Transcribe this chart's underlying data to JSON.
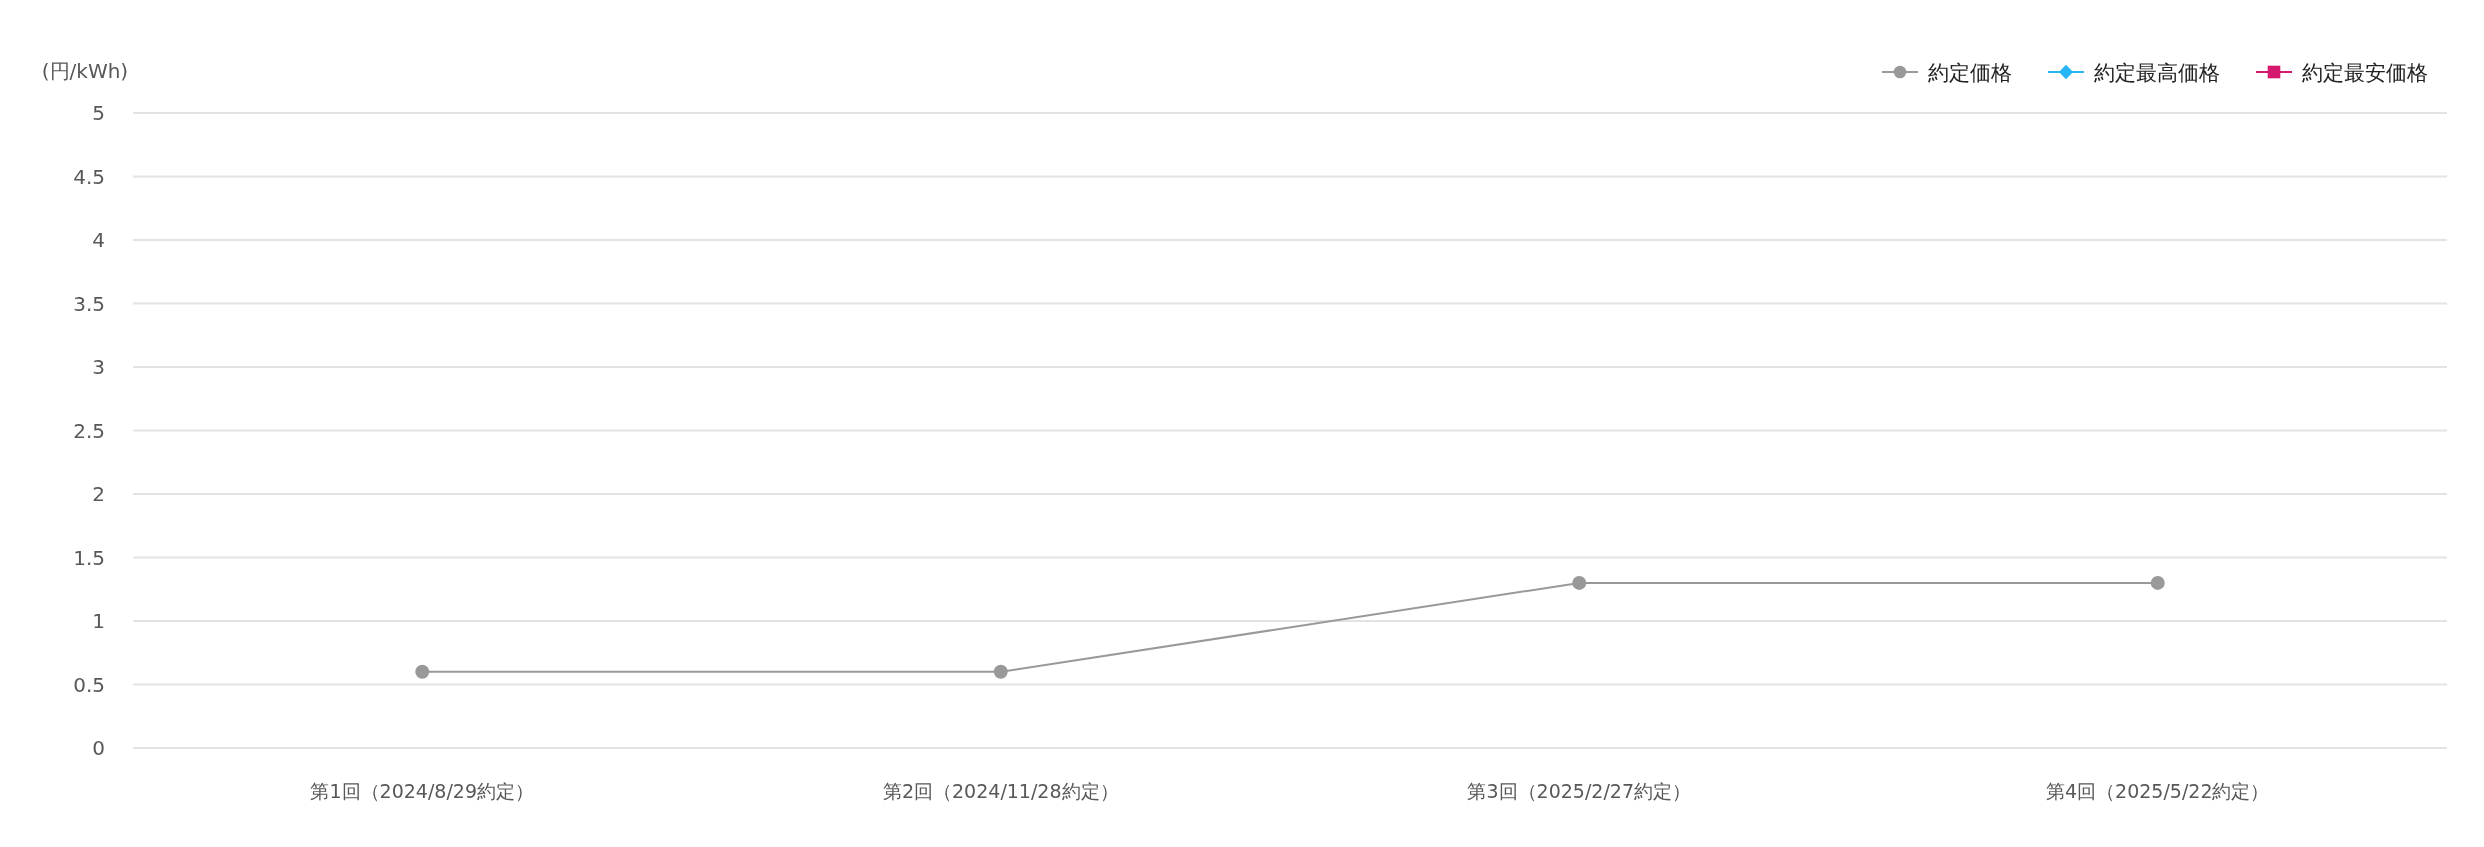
{
  "chart_data": {
    "type": "line",
    "ylabel": "(円/kWh)",
    "categories": [
      "第1回（2024/8/29約定）",
      "第2回（2024/11/28約定）",
      "第3回（2025/2/27約定）",
      "第4回（2025/5/22約定）"
    ],
    "series": [
      {
        "name": "約定価格",
        "color": "#999999",
        "marker": "circle",
        "values": [
          0.6,
          0.6,
          1.3,
          1.3
        ]
      },
      {
        "name": "約定最高価格",
        "color": "#29b6f6",
        "marker": "diamond",
        "values": [
          null,
          null,
          null,
          null
        ]
      },
      {
        "name": "約定最安価格",
        "color": "#d6196e",
        "marker": "square",
        "values": [
          null,
          null,
          null,
          null
        ]
      }
    ],
    "ylim": [
      0,
      5
    ],
    "yticks": [
      0,
      0.5,
      1,
      1.5,
      2,
      2.5,
      3,
      3.5,
      4,
      4.5,
      5
    ],
    "grid": "y",
    "legend": "top right"
  }
}
